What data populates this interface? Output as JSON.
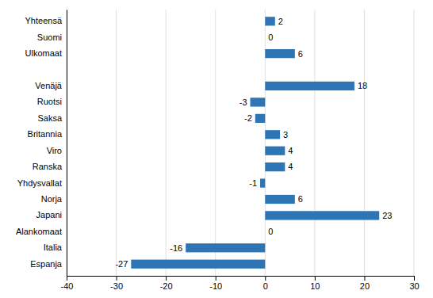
{
  "chart_data": {
    "type": "bar",
    "orientation": "horizontal",
    "categories": [
      "Espanja",
      "Italia",
      "Alankomaat",
      "Japani",
      "Norja",
      "Yhdysvallat",
      "Ranska",
      "Viro",
      "Britannia",
      "Saksa",
      "Ruotsi",
      "Venäjä",
      null,
      "Ulkomaat",
      "Suomi",
      "Yhteensä"
    ],
    "values": [
      -27,
      -16,
      0,
      23,
      6,
      -1,
      4,
      4,
      3,
      -2,
      -3,
      18,
      null,
      6,
      0,
      2
    ],
    "color": "#2E75B6",
    "xlim": [
      -40,
      30
    ],
    "xticks": [
      -40,
      -30,
      -20,
      -10,
      0,
      10,
      20,
      30
    ],
    "grid": true,
    "data_labels": true
  }
}
